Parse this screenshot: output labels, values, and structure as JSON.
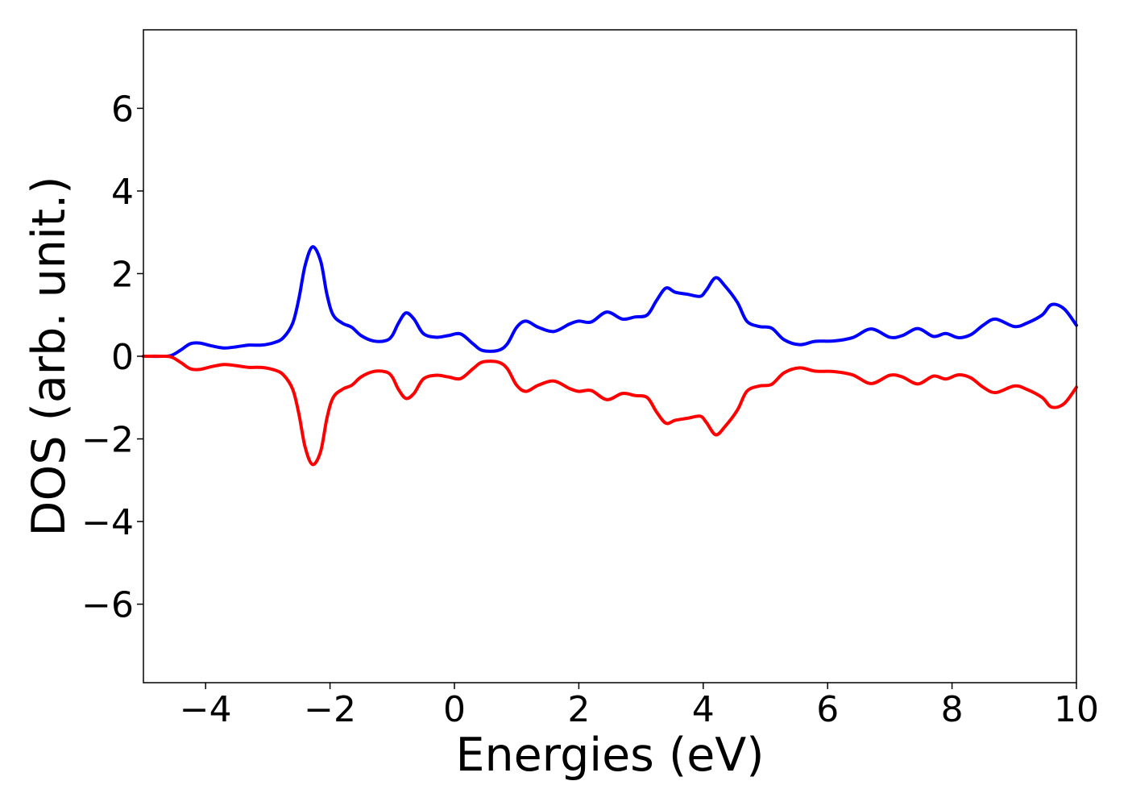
{
  "chart_data": {
    "type": "line",
    "title": "",
    "xlabel": "Energies (eV)",
    "ylabel": "DOS (arb. unit.)",
    "xlim": [
      -5,
      10
    ],
    "ylim": [
      -7.9,
      7.9
    ],
    "grid": false,
    "legend": "none",
    "x_ticks": [
      -4,
      -2,
      0,
      2,
      4,
      6,
      8,
      10
    ],
    "x_tick_labels": [
      "−4",
      "−2",
      "0",
      "2",
      "4",
      "6",
      "8",
      "10"
    ],
    "y_ticks": [
      -6,
      -4,
      -2,
      0,
      2,
      4,
      6
    ],
    "y_tick_labels": [
      "−6",
      "−4",
      "−2",
      "0",
      "2",
      "4",
      "6"
    ],
    "series": [
      {
        "color": "#0000ff",
        "points": [
          [
            -5.0,
            0.0
          ],
          [
            -4.7,
            0.0
          ],
          [
            -4.55,
            0.02
          ],
          [
            -4.4,
            0.15
          ],
          [
            -4.25,
            0.3
          ],
          [
            -4.1,
            0.32
          ],
          [
            -3.9,
            0.25
          ],
          [
            -3.7,
            0.2
          ],
          [
            -3.5,
            0.23
          ],
          [
            -3.3,
            0.27
          ],
          [
            -3.1,
            0.27
          ],
          [
            -2.9,
            0.33
          ],
          [
            -2.75,
            0.45
          ],
          [
            -2.6,
            0.8
          ],
          [
            -2.5,
            1.4
          ],
          [
            -2.4,
            2.2
          ],
          [
            -2.28,
            2.65
          ],
          [
            -2.15,
            2.3
          ],
          [
            -2.05,
            1.5
          ],
          [
            -1.95,
            1.0
          ],
          [
            -1.8,
            0.8
          ],
          [
            -1.65,
            0.7
          ],
          [
            -1.5,
            0.5
          ],
          [
            -1.3,
            0.37
          ],
          [
            -1.1,
            0.38
          ],
          [
            -1.0,
            0.5
          ],
          [
            -0.9,
            0.8
          ],
          [
            -0.78,
            1.05
          ],
          [
            -0.65,
            0.9
          ],
          [
            -0.5,
            0.55
          ],
          [
            -0.3,
            0.46
          ],
          [
            -0.1,
            0.5
          ],
          [
            0.1,
            0.54
          ],
          [
            0.3,
            0.3
          ],
          [
            0.45,
            0.14
          ],
          [
            0.7,
            0.14
          ],
          [
            0.85,
            0.3
          ],
          [
            1.0,
            0.7
          ],
          [
            1.15,
            0.85
          ],
          [
            1.35,
            0.7
          ],
          [
            1.6,
            0.6
          ],
          [
            1.85,
            0.78
          ],
          [
            2.0,
            0.85
          ],
          [
            2.2,
            0.83
          ],
          [
            2.45,
            1.07
          ],
          [
            2.7,
            0.9
          ],
          [
            2.9,
            0.95
          ],
          [
            3.1,
            1.0
          ],
          [
            3.25,
            1.35
          ],
          [
            3.4,
            1.65
          ],
          [
            3.55,
            1.55
          ],
          [
            3.75,
            1.5
          ],
          [
            3.95,
            1.45
          ],
          [
            4.05,
            1.6
          ],
          [
            4.2,
            1.9
          ],
          [
            4.35,
            1.7
          ],
          [
            4.55,
            1.3
          ],
          [
            4.7,
            0.85
          ],
          [
            4.9,
            0.72
          ],
          [
            5.1,
            0.68
          ],
          [
            5.3,
            0.4
          ],
          [
            5.55,
            0.28
          ],
          [
            5.8,
            0.36
          ],
          [
            6.1,
            0.37
          ],
          [
            6.4,
            0.45
          ],
          [
            6.7,
            0.66
          ],
          [
            7.0,
            0.46
          ],
          [
            7.2,
            0.5
          ],
          [
            7.45,
            0.67
          ],
          [
            7.7,
            0.48
          ],
          [
            7.9,
            0.55
          ],
          [
            8.1,
            0.45
          ],
          [
            8.3,
            0.52
          ],
          [
            8.5,
            0.75
          ],
          [
            8.7,
            0.9
          ],
          [
            9.0,
            0.72
          ],
          [
            9.2,
            0.8
          ],
          [
            9.45,
            1.0
          ],
          [
            9.6,
            1.25
          ],
          [
            9.8,
            1.15
          ],
          [
            10.0,
            0.75
          ]
        ]
      },
      {
        "color": "#ff0000",
        "points": [
          [
            -5.0,
            0.0
          ],
          [
            -4.7,
            0.0
          ],
          [
            -4.55,
            -0.02
          ],
          [
            -4.4,
            -0.15
          ],
          [
            -4.25,
            -0.3
          ],
          [
            -4.1,
            -0.32
          ],
          [
            -3.9,
            -0.25
          ],
          [
            -3.7,
            -0.2
          ],
          [
            -3.5,
            -0.23
          ],
          [
            -3.3,
            -0.27
          ],
          [
            -3.1,
            -0.27
          ],
          [
            -2.9,
            -0.33
          ],
          [
            -2.75,
            -0.45
          ],
          [
            -2.6,
            -0.8
          ],
          [
            -2.5,
            -1.4
          ],
          [
            -2.4,
            -2.2
          ],
          [
            -2.28,
            -2.62
          ],
          [
            -2.15,
            -2.3
          ],
          [
            -2.05,
            -1.5
          ],
          [
            -1.95,
            -1.0
          ],
          [
            -1.8,
            -0.8
          ],
          [
            -1.65,
            -0.7
          ],
          [
            -1.5,
            -0.5
          ],
          [
            -1.3,
            -0.37
          ],
          [
            -1.1,
            -0.38
          ],
          [
            -1.0,
            -0.5
          ],
          [
            -0.9,
            -0.8
          ],
          [
            -0.78,
            -1.02
          ],
          [
            -0.65,
            -0.9
          ],
          [
            -0.5,
            -0.55
          ],
          [
            -0.3,
            -0.46
          ],
          [
            -0.1,
            -0.5
          ],
          [
            0.1,
            -0.54
          ],
          [
            0.3,
            -0.3
          ],
          [
            0.45,
            -0.14
          ],
          [
            0.7,
            -0.14
          ],
          [
            0.85,
            -0.3
          ],
          [
            1.0,
            -0.7
          ],
          [
            1.15,
            -0.85
          ],
          [
            1.35,
            -0.7
          ],
          [
            1.6,
            -0.6
          ],
          [
            1.85,
            -0.78
          ],
          [
            2.0,
            -0.85
          ],
          [
            2.2,
            -0.83
          ],
          [
            2.45,
            -1.05
          ],
          [
            2.7,
            -0.9
          ],
          [
            2.9,
            -0.95
          ],
          [
            3.1,
            -1.0
          ],
          [
            3.25,
            -1.35
          ],
          [
            3.4,
            -1.62
          ],
          [
            3.55,
            -1.55
          ],
          [
            3.75,
            -1.5
          ],
          [
            3.95,
            -1.45
          ],
          [
            4.05,
            -1.6
          ],
          [
            4.2,
            -1.9
          ],
          [
            4.35,
            -1.7
          ],
          [
            4.55,
            -1.3
          ],
          [
            4.7,
            -0.85
          ],
          [
            4.9,
            -0.72
          ],
          [
            5.1,
            -0.68
          ],
          [
            5.3,
            -0.4
          ],
          [
            5.55,
            -0.28
          ],
          [
            5.8,
            -0.36
          ],
          [
            6.1,
            -0.37
          ],
          [
            6.4,
            -0.45
          ],
          [
            6.7,
            -0.66
          ],
          [
            7.0,
            -0.46
          ],
          [
            7.2,
            -0.5
          ],
          [
            7.45,
            -0.67
          ],
          [
            7.7,
            -0.48
          ],
          [
            7.9,
            -0.55
          ],
          [
            8.1,
            -0.45
          ],
          [
            8.3,
            -0.52
          ],
          [
            8.5,
            -0.75
          ],
          [
            8.7,
            -0.88
          ],
          [
            9.0,
            -0.72
          ],
          [
            9.2,
            -0.8
          ],
          [
            9.45,
            -1.0
          ],
          [
            9.6,
            -1.23
          ],
          [
            9.8,
            -1.15
          ],
          [
            10.0,
            -0.75
          ]
        ]
      }
    ]
  }
}
